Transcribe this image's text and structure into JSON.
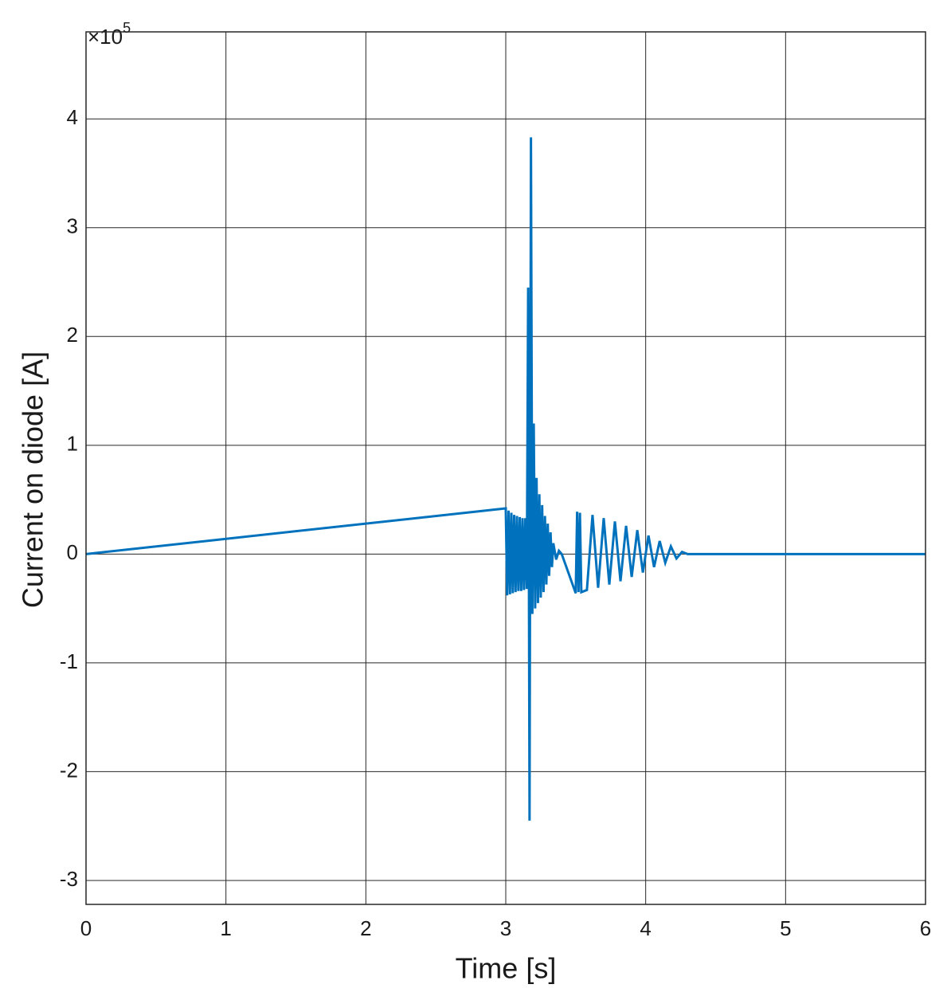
{
  "chart_data": {
    "type": "line",
    "x_label": "Time [s]",
    "y_label": "Current on diode [A]",
    "y_multiplier": {
      "base": "×10",
      "exponent": "5"
    },
    "xlim": [
      0,
      6
    ],
    "xticks": [
      0,
      1,
      2,
      3,
      4,
      5,
      6
    ],
    "ylim": [
      -3.22,
      4.8
    ],
    "yticks": [
      -3,
      -2,
      -1,
      0,
      1,
      2,
      3,
      4
    ],
    "grid": true,
    "series": [
      {
        "color": "#0072bd",
        "x": [
          0,
          3.0,
          3.01,
          3.02,
          3.03,
          3.04,
          3.05,
          3.06,
          3.07,
          3.08,
          3.09,
          3.1,
          3.11,
          3.12,
          3.13,
          3.14,
          3.15,
          3.16,
          3.17,
          3.18,
          3.19,
          3.2,
          3.21,
          3.22,
          3.23,
          3.24,
          3.25,
          3.26,
          3.27,
          3.28,
          3.29,
          3.3,
          3.31,
          3.32,
          3.33,
          3.34,
          3.36,
          3.38,
          3.4,
          3.5,
          3.51,
          3.52,
          3.53,
          3.54,
          3.58,
          3.62,
          3.66,
          3.7,
          3.74,
          3.78,
          3.82,
          3.86,
          3.9,
          3.94,
          3.98,
          4.02,
          4.06,
          4.1,
          4.14,
          4.18,
          4.22,
          4.26,
          4.3,
          6
        ],
        "values": [
          0,
          0.42,
          -0.38,
          0.4,
          -0.37,
          0.38,
          -0.36,
          0.36,
          -0.35,
          0.35,
          -0.34,
          0.34,
          -0.34,
          0.33,
          -0.33,
          0.33,
          -0.32,
          2.45,
          -2.45,
          3.83,
          -0.55,
          1.2,
          -0.5,
          0.7,
          -0.45,
          0.55,
          -0.4,
          0.45,
          -0.35,
          0.35,
          -0.28,
          0.28,
          -0.2,
          0.2,
          -0.12,
          0.1,
          -0.05,
          0.03,
          0,
          -0.36,
          0.39,
          -0.35,
          0.38,
          -0.35,
          -0.33,
          0.36,
          -0.31,
          0.33,
          -0.28,
          0.3,
          -0.25,
          0.26,
          -0.21,
          0.22,
          -0.17,
          0.17,
          -0.12,
          0.12,
          -0.08,
          0.07,
          -0.04,
          0.02,
          0,
          0
        ]
      }
    ]
  }
}
